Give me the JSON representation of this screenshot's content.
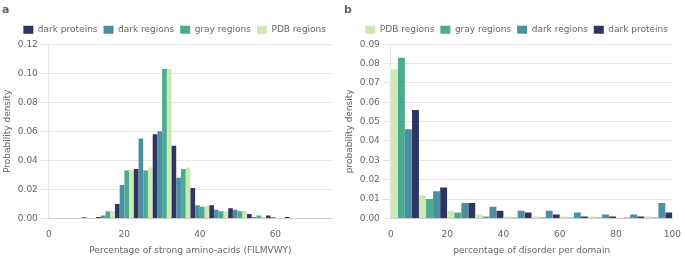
{
  "chart_data": [
    {
      "type": "bar",
      "title": "a",
      "xlabel": "Percentage of strong amino-acids (FILMVWY)",
      "ylabel": "Probability density",
      "x": [
        10,
        15,
        20,
        25,
        30,
        35,
        40,
        45,
        50,
        55,
        60,
        65,
        70
      ],
      "series": [
        {
          "name": "dark proteins",
          "color": "#2d3561",
          "values": [
            0.0,
            0.001,
            0.01,
            0.034,
            0.058,
            0.05,
            0.021,
            0.009,
            0.007,
            0.003,
            0.002,
            0.001,
            0.0
          ]
        },
        {
          "name": "dark regions",
          "color": "#4a8fa3",
          "values": [
            0.001,
            0.002,
            0.023,
            0.055,
            0.06,
            0.028,
            0.009,
            0.006,
            0.006,
            0.001,
            0.001,
            0.0,
            0.0
          ]
        },
        {
          "name": "gray regions",
          "color": "#4aab8e",
          "values": [
            0.0,
            0.005,
            0.033,
            0.033,
            0.103,
            0.034,
            0.008,
            0.005,
            0.005,
            0.002,
            0.0,
            0.0,
            0.0
          ]
        },
        {
          "name": "PDB regions",
          "color": "#cce8b5",
          "values": [
            0.0,
            0.005,
            0.033,
            0.035,
            0.103,
            0.035,
            0.0085,
            0.005,
            0.005,
            0.001,
            0.0,
            0.0,
            0.0
          ]
        }
      ],
      "xlim": [
        0,
        75
      ],
      "xticks": [
        0,
        20,
        40,
        60
      ],
      "ylim": [
        0,
        0.12
      ],
      "yticks": [
        {
          "value": 0,
          "label": "0.00"
        },
        {
          "value": 0.02,
          "label": "0.02"
        },
        {
          "value": 0.04,
          "label": "0.04"
        },
        {
          "value": 0.06,
          "label": "0.06"
        },
        {
          "value": 0.08,
          "label": "0.08"
        },
        {
          "value": 0.1,
          "label": "0.10"
        },
        {
          "value": 0.12,
          "label": "0.12"
        }
      ],
      "grid": "y",
      "legend": "upper right"
    },
    {
      "type": "bar",
      "title": "b",
      "xlabel": "percentage of disorder per domain",
      "ylabel": "probability density",
      "bins": [
        0,
        10,
        20,
        30,
        40,
        50,
        60,
        70,
        80,
        90,
        100
      ],
      "series": [
        {
          "name": "PDB regions",
          "color": "#cce8b5",
          "values": [
            0.077,
            0.012,
            0.004,
            0.002,
            0.001,
            0.001,
            0.001,
            0.001,
            0.0005,
            0.001
          ]
        },
        {
          "name": "gray regions",
          "color": "#4aab8e",
          "values": [
            0.083,
            0.01,
            0.003,
            0.001,
            0.0005,
            0.0005,
            0.0005,
            0.0005,
            0.0005,
            0.0005
          ]
        },
        {
          "name": "dark regions",
          "color": "#4a8fa3",
          "values": [
            0.046,
            0.014,
            0.008,
            0.006,
            0.004,
            0.004,
            0.003,
            0.002,
            0.002,
            0.008
          ]
        },
        {
          "name": "dark proteins",
          "color": "#2d3561",
          "values": [
            0.056,
            0.016,
            0.008,
            0.004,
            0.003,
            0.002,
            0.001,
            0.001,
            0.001,
            0.003
          ]
        }
      ],
      "xlim": [
        0,
        100
      ],
      "xticks": [
        0,
        20,
        40,
        60,
        80,
        100
      ],
      "ylim": [
        0,
        0.09
      ],
      "yticks": [
        {
          "value": 0,
          "label": "0.00"
        },
        {
          "value": 0.01,
          "label": "0.01"
        },
        {
          "value": 0.02,
          "label": "0.02"
        },
        {
          "value": 0.03,
          "label": "0.03"
        },
        {
          "value": 0.04,
          "label": "0.04"
        },
        {
          "value": 0.05,
          "label": "0.05"
        },
        {
          "value": 0.06,
          "label": "0.06"
        },
        {
          "value": 0.07,
          "label": "0.07"
        },
        {
          "value": 0.08,
          "label": "0.08"
        },
        {
          "value": 0.09,
          "label": "0.09"
        }
      ],
      "grid": "y",
      "legend": "upper right"
    }
  ]
}
